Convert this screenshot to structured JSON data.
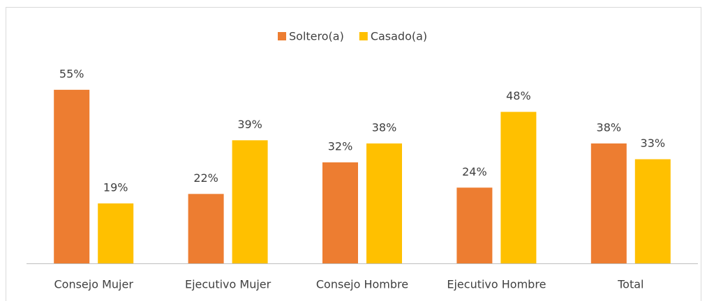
{
  "chart_data": {
    "type": "bar",
    "categories": [
      "Consejo Mujer",
      "Ejecutivo Mujer",
      "Consejo Hombre",
      "Ejecutivo Hombre",
      "Total"
    ],
    "series": [
      {
        "name": "Soltero(a)",
        "color": "#ED7D31",
        "values": [
          55,
          22,
          32,
          24,
          38
        ],
        "value_labels": [
          "55%",
          "22%",
          "32%",
          "24%",
          "38%"
        ]
      },
      {
        "name": "Casado(a)",
        "color": "#FFC000",
        "values": [
          19,
          39,
          38,
          48,
          33
        ],
        "value_labels": [
          "19%",
          "39%",
          "38%",
          "48%",
          "33%"
        ]
      }
    ],
    "legend": "top"
  }
}
